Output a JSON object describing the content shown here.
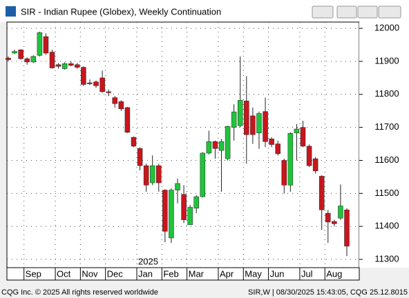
{
  "window_title": "SIR - Indian Rupee (Globex), Weekly Continuation",
  "footer": {
    "left": "CQG Inc. © 2025 All rights reserved worldwide",
    "right": "SIR,W | 08/30/2025 15:43:05, CQG 25.12.8015"
  },
  "chart_data": {
    "type": "candlestick",
    "year_label": "2025",
    "categories": [
      null,
      null,
      null,
      "Sep",
      null,
      null,
      null,
      null,
      "Oct",
      null,
      null,
      null,
      "Nov",
      null,
      null,
      null,
      "Dec",
      null,
      null,
      null,
      null,
      "Jan",
      null,
      null,
      null,
      "Feb",
      null,
      null,
      null,
      "Mar",
      null,
      null,
      null,
      null,
      "Apr",
      null,
      null,
      null,
      "May",
      null,
      null,
      null,
      "Jun",
      null,
      null,
      null,
      null,
      "Jul",
      null,
      null,
      null,
      "Aug",
      null,
      null,
      null
    ],
    "open": [
      11910,
      11925,
      11935,
      11908,
      11898,
      11918,
      11975,
      11928,
      11890,
      11878,
      11893,
      11890,
      11882,
      11835,
      11838,
      11850,
      11808,
      11790,
      11778,
      11760,
      11670,
      11636,
      11584,
      11532,
      11584,
      11510,
      11365,
      11510,
      11497,
      11405,
      11455,
      11490,
      11622,
      11657,
      11630,
      11605,
      11700,
      11705,
      11780,
      11735,
      11683,
      11748,
      11665,
      11650,
      11600,
      11525,
      11683,
      11700,
      11643,
      11605,
      11552,
      11440,
      11415,
      11425,
      11450
    ],
    "high": [
      11915,
      11935,
      11937,
      11912,
      11918,
      11990,
      11985,
      11935,
      11895,
      11897,
      11900,
      11895,
      11885,
      11845,
      11842,
      11872,
      11815,
      11795,
      11782,
      11762,
      11672,
      11640,
      11590,
      11615,
      11590,
      11512,
      11515,
      11545,
      11525,
      11465,
      11495,
      11625,
      11690,
      11660,
      11665,
      11705,
      11770,
      11915,
      11855,
      11760,
      11748,
      11790,
      11670,
      11660,
      11605,
      11685,
      11710,
      11720,
      11648,
      11610,
      11555,
      11450,
      11420,
      11527,
      11455
    ],
    "low": [
      11900,
      11922,
      11905,
      11890,
      11895,
      11915,
      11920,
      11878,
      11878,
      11875,
      11885,
      11878,
      11825,
      11828,
      11820,
      11805,
      11795,
      11760,
      11750,
      11683,
      11640,
      11570,
      11505,
      11525,
      11505,
      11352,
      11350,
      11470,
      11410,
      11405,
      11440,
      11488,
      11618,
      11605,
      11505,
      11600,
      11660,
      11700,
      11590,
      11650,
      11635,
      11640,
      11640,
      11615,
      11500,
      11505,
      11600,
      11640,
      11580,
      11560,
      11390,
      11350,
      11400,
      11420,
      11310
    ],
    "close": [
      11905,
      11930,
      11908,
      11898,
      11915,
      11987,
      11925,
      11880,
      11885,
      11893,
      11888,
      11882,
      11830,
      11832,
      11826,
      11808,
      11805,
      11772,
      11756,
      11685,
      11643,
      11584,
      11525,
      11584,
      11532,
      11385,
      11510,
      11530,
      11420,
      11458,
      11490,
      11622,
      11657,
      11636,
      11657,
      11703,
      11747,
      11782,
      11678,
      11678,
      11742,
      11657,
      11648,
      11620,
      11525,
      11682,
      11695,
      11643,
      11584,
      11568,
      11450,
      11413,
      11408,
      11462,
      11340
    ],
    "up_color": "#1fc43a",
    "down_color": "#c8161d",
    "ylim": [
      11275,
      12019
    ],
    "yticks": [
      11300,
      11400,
      11500,
      11600,
      11700,
      11800,
      11900,
      12000
    ],
    "grid": true
  }
}
